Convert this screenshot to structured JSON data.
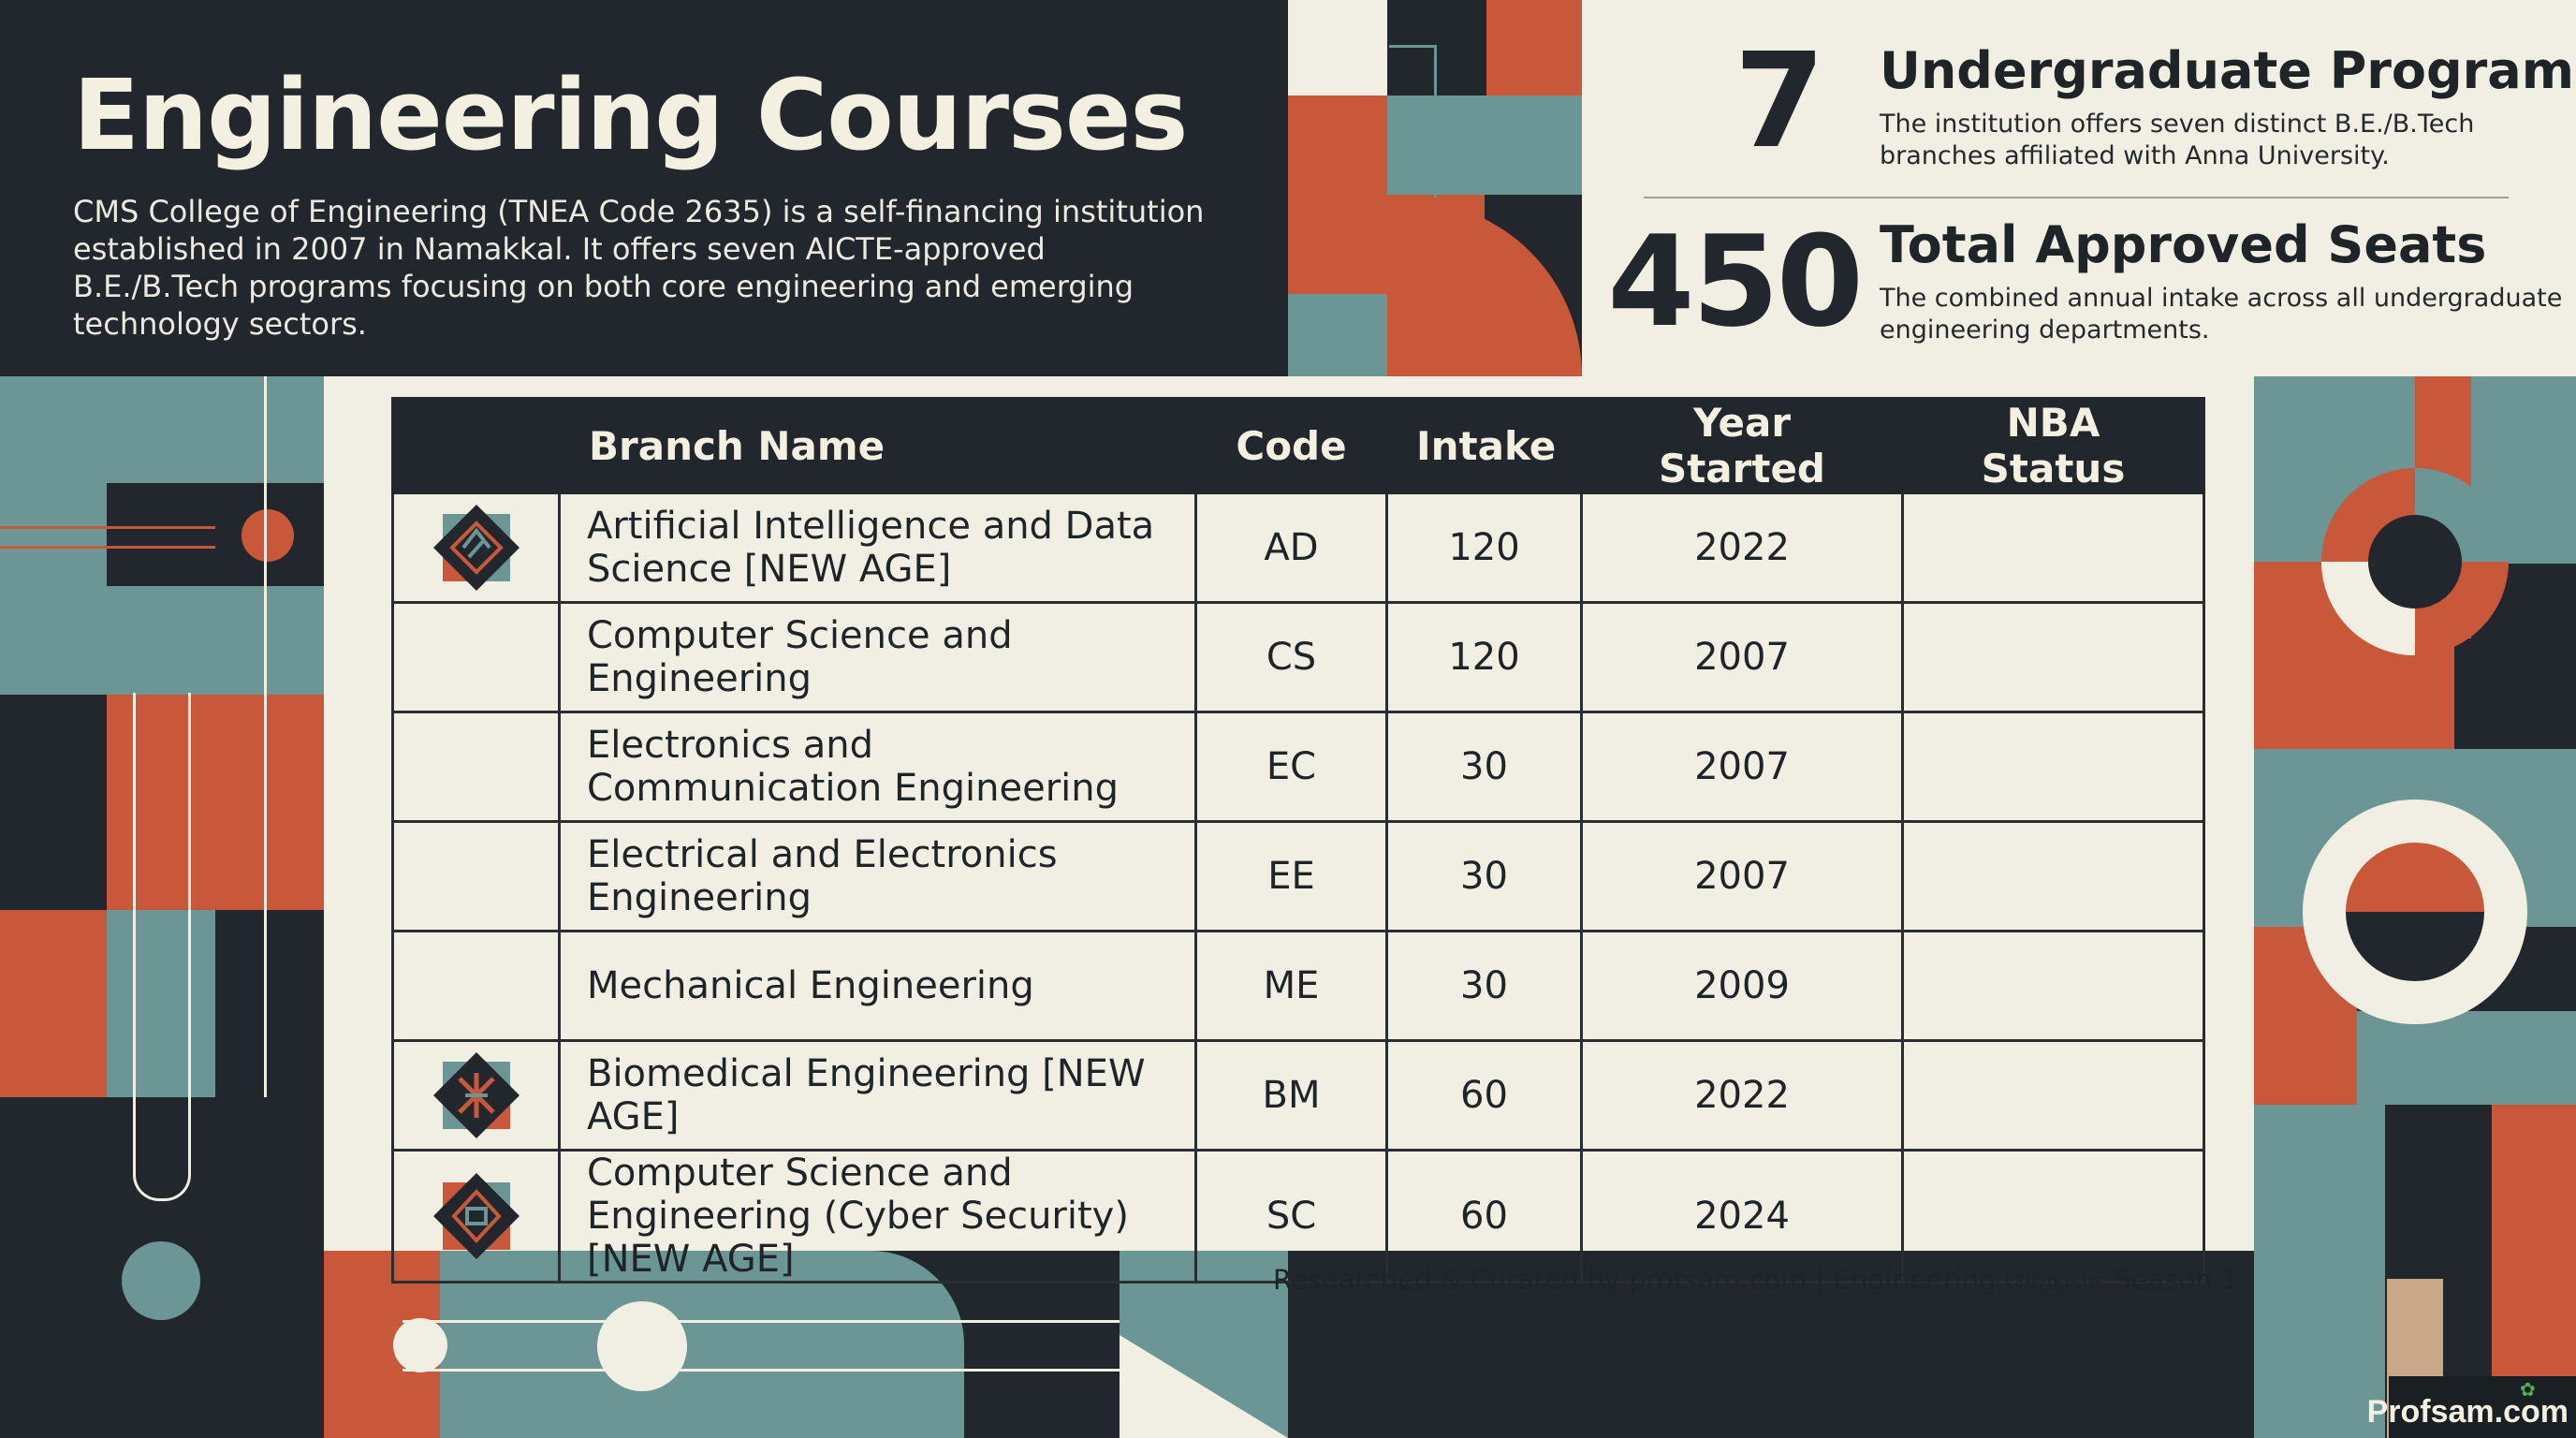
{
  "header": {
    "title": "Engineering Courses",
    "description": "CMS College of Engineering (TNEA Code 2635) is a self-financing institution established in 2007 in Namakkal. It offers seven AICTE-approved B.E./B.Tech programs focusing on both core engineering and emerging technology sectors."
  },
  "stats": [
    {
      "number": "7",
      "title": "Undergraduate Programs",
      "desc": "The institution offers seven distinct B.E./B.Tech branches affiliated with Anna University."
    },
    {
      "number": "450",
      "title": "Total Approved Seats",
      "desc": "The combined annual intake across all undergraduate engineering departments."
    }
  ],
  "table": {
    "headers": [
      "Branch Name",
      "Code",
      "Intake",
      "Year Started",
      "NBA Status"
    ],
    "rows": [
      {
        "name": "Artificial Intelligence and Data Science [NEW AGE]",
        "code": "AD",
        "intake": "120",
        "year": "2022",
        "nba": "",
        "icon": "ai-badge-icon"
      },
      {
        "name": "Computer Science and Engineering",
        "code": "CS",
        "intake": "120",
        "year": "2007",
        "nba": "",
        "icon": ""
      },
      {
        "name": "Electronics and Communication Engineering",
        "code": "EC",
        "intake": "30",
        "year": "2007",
        "nba": "",
        "icon": ""
      },
      {
        "name": "Electrical and Electronics Engineering",
        "code": "EE",
        "intake": "30",
        "year": "2007",
        "nba": "",
        "icon": ""
      },
      {
        "name": "Mechanical Engineering",
        "code": "ME",
        "intake": "30",
        "year": "2009",
        "nba": "",
        "icon": ""
      },
      {
        "name": "Biomedical Engineering [NEW AGE]",
        "code": "BM",
        "intake": "60",
        "year": "2022",
        "nba": "",
        "icon": "biomedical-badge-icon"
      },
      {
        "name": "Computer Science and Engineering (Cyber Security) [NEW AGE]",
        "code": "SC",
        "intake": "60",
        "year": "2024",
        "nba": "",
        "icon": "cyber-security-badge-icon"
      }
    ]
  },
  "footer": {
    "credit": "Researched & Curated by profsam.com | Engineering சேருங்க Season 1",
    "watermark": "Profsam.com"
  },
  "colors": {
    "dark": "#22272d",
    "orange": "#c9573a",
    "teal": "#6c9595",
    "cream": "#f1efe3"
  }
}
